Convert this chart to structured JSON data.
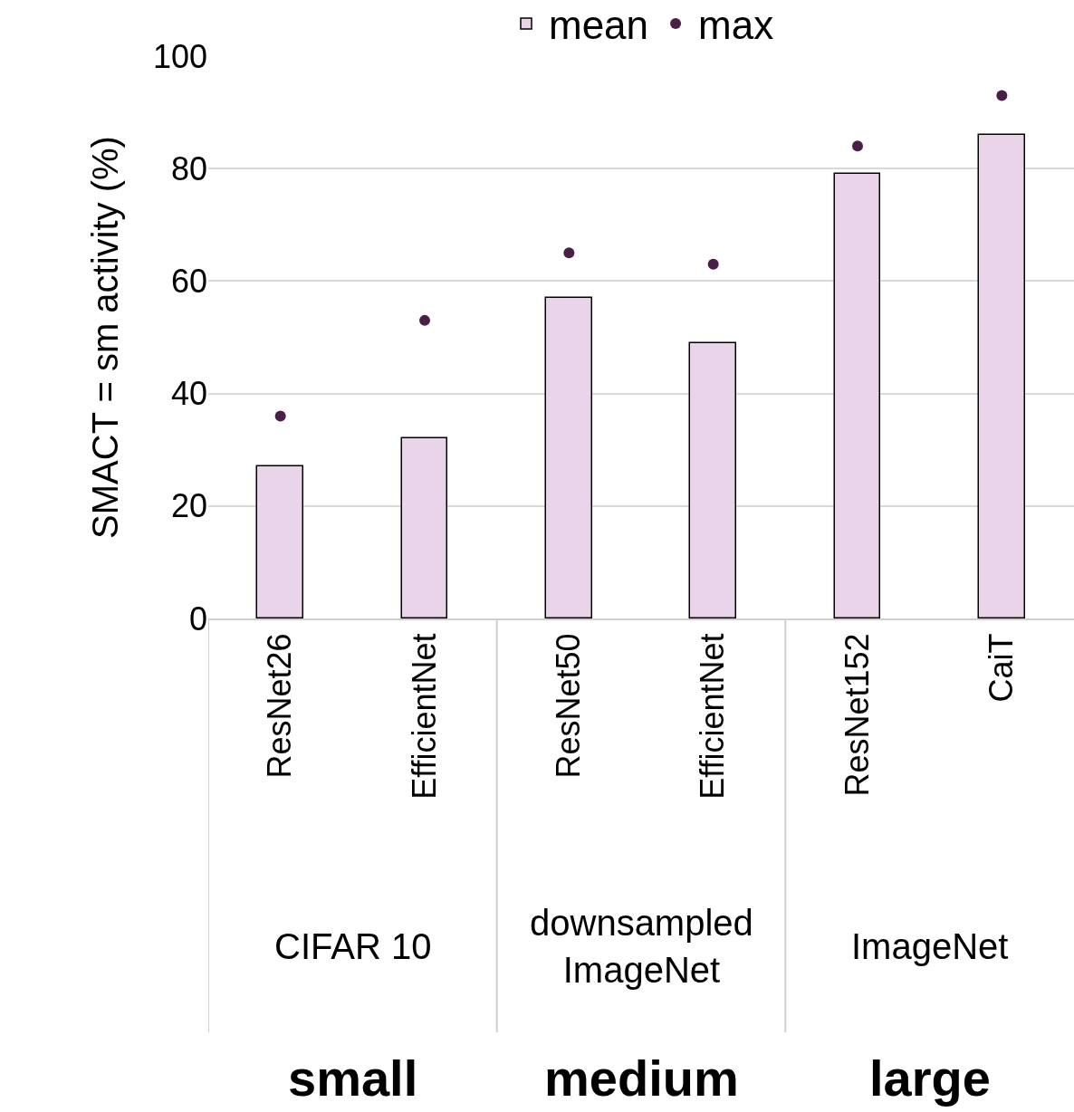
{
  "chart_data": {
    "type": "bar",
    "ylabel": "SMACT = sm activity (%)",
    "categories": [
      "ResNet26",
      "EfficientNet",
      "ResNet50",
      "EfficientNet",
      "ResNet152",
      "CaiT"
    ],
    "series": [
      {
        "name": "mean",
        "color": "#ead4ea",
        "values": [
          27,
          32,
          57,
          49,
          79,
          86
        ]
      },
      {
        "name": "max",
        "type": "scatter",
        "color": "#4a1f47",
        "marker": "circle",
        "values": [
          36,
          53,
          65,
          63,
          84,
          93
        ]
      }
    ],
    "ylim": [
      0,
      100
    ],
    "yticks": [
      0,
      20,
      40,
      60,
      80,
      100
    ],
    "grid": "y",
    "legend": "top",
    "annotations": [
      "CIFAR 10",
      "downsampled ImageNet",
      "ImageNet",
      "small",
      "medium",
      "large"
    ]
  }
}
